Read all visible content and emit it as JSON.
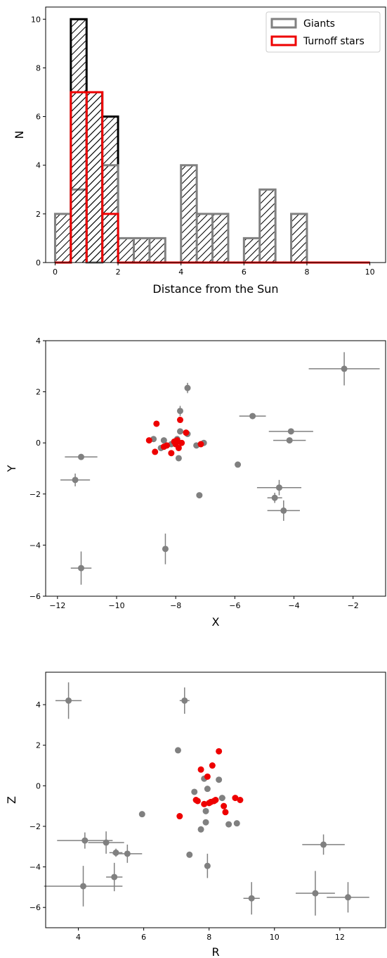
{
  "chart_data": [
    {
      "type": "bar",
      "xlabel": "Distance from the Sun",
      "ylabel": "N",
      "xlim": [
        -0.3,
        10.5
      ],
      "ylim": [
        0,
        10.5
      ],
      "xticks": [
        0,
        2,
        4,
        6,
        8,
        10
      ],
      "yticks": [
        0,
        2,
        4,
        6,
        8,
        10
      ],
      "bin_edges": [
        0,
        0.5,
        1,
        1.5,
        2,
        2.5,
        3,
        3.5,
        4,
        4.5,
        5,
        5.5,
        6,
        6.5,
        7,
        7.5,
        8,
        8.5,
        9,
        9.5,
        10
      ],
      "legend_position": "top-right",
      "series": [
        {
          "name": "",
          "style": "hatched-step-outline",
          "color": "#000000",
          "values": [
            0,
            10,
            7,
            6,
            0,
            0,
            0,
            0,
            0,
            0,
            0,
            0,
            0,
            0,
            0,
            0,
            0,
            0,
            0,
            0
          ]
        },
        {
          "name": "Giants",
          "style": "hatched-step-outline",
          "color": "#808080",
          "values": [
            2,
            3,
            0,
            4,
            1,
            1,
            1,
            0,
            4,
            2,
            2,
            0,
            1,
            3,
            0,
            2,
            0,
            0,
            0,
            0
          ]
        },
        {
          "name": "Turnoff stars",
          "style": "hatched-step-outline",
          "color": "#ee0000",
          "values": [
            0,
            7,
            7,
            2,
            0,
            0,
            0,
            0,
            0,
            0,
            0,
            0,
            0,
            0,
            0,
            0,
            0,
            0,
            0,
            0
          ]
        }
      ],
      "legend": [
        "Giants",
        "Turnoff stars"
      ]
    },
    {
      "type": "scatter",
      "xlabel": "X",
      "ylabel": "Y",
      "xlim": [
        -12.4,
        -0.9
      ],
      "ylim": [
        -6,
        4
      ],
      "xticks": [
        -12,
        -10,
        -8,
        -6,
        -4,
        -2
      ],
      "yticks": [
        -6,
        -4,
        -2,
        0,
        2,
        4
      ],
      "tick_text": {
        "x": [
          "−12",
          "−10",
          "−8",
          "−6",
          "−4",
          "−2"
        ],
        "y": [
          "−6",
          "−4",
          "−2",
          "0",
          "2",
          "4"
        ]
      },
      "series": [
        {
          "name": "",
          "color": "#808080",
          "points": [
            {
              "x": -2.3,
              "y": 2.9,
              "xerr": 1.2,
              "yerr": 0.65
            },
            {
              "x": -7.6,
              "y": 2.15,
              "xerr": 0,
              "yerr": 0.2
            },
            {
              "x": -5.4,
              "y": 1.05,
              "xerr": 0.45,
              "yerr": 0.1
            },
            {
              "x": -4.1,
              "y": 0.45,
              "xerr": 0.75,
              "yerr": 0.05
            },
            {
              "x": -4.15,
              "y": 0.1,
              "xerr": 0.55,
              "yerr": 0.05
            },
            {
              "x": -7.85,
              "y": 1.25,
              "xerr": 0,
              "yerr": 0.2
            },
            {
              "x": -11.2,
              "y": -0.55,
              "xerr": 0.55,
              "yerr": 0.05
            },
            {
              "x": -11.4,
              "y": -1.45,
              "xerr": 0.5,
              "yerr": 0.25
            },
            {
              "x": -5.9,
              "y": -0.85,
              "xerr": 0,
              "yerr": 0
            },
            {
              "x": -7.2,
              "y": -2.05,
              "xerr": 0,
              "yerr": 0.1
            },
            {
              "x": -4.5,
              "y": -1.75,
              "xerr": 0.75,
              "yerr": 0.3
            },
            {
              "x": -4.65,
              "y": -2.15,
              "xerr": 0.25,
              "yerr": 0.2
            },
            {
              "x": -4.35,
              "y": -2.65,
              "xerr": 0.55,
              "yerr": 0.4
            },
            {
              "x": -8.35,
              "y": -4.15,
              "xerr": 0,
              "yerr": 0.6
            },
            {
              "x": -11.2,
              "y": -4.9,
              "xerr": 0.35,
              "yerr": 0.65
            },
            {
              "x": -8.75,
              "y": 0.15,
              "xerr": 0,
              "yerr": 0
            },
            {
              "x": -8.4,
              "y": 0.1,
              "xerr": 0,
              "yerr": 0
            },
            {
              "x": -8.15,
              "y": -0.05,
              "xerr": 0,
              "yerr": 0
            },
            {
              "x": -7.95,
              "y": 0.15,
              "xerr": 0,
              "yerr": 0
            },
            {
              "x": -7.85,
              "y": 0.45,
              "xerr": 0,
              "yerr": 0
            },
            {
              "x": -7.6,
              "y": 0.35,
              "xerr": 0,
              "yerr": 0
            },
            {
              "x": -7.3,
              "y": -0.1,
              "xerr": 0,
              "yerr": 0
            },
            {
              "x": -7.05,
              "y": 0.0,
              "xerr": 0,
              "yerr": 0
            },
            {
              "x": -7.9,
              "y": -0.6,
              "xerr": 0,
              "yerr": 0
            },
            {
              "x": -8.5,
              "y": -0.2,
              "xerr": 0,
              "yerr": 0
            }
          ]
        },
        {
          "name": "",
          "color": "#ee0000",
          "points": [
            {
              "x": -8.9,
              "y": 0.1
            },
            {
              "x": -8.65,
              "y": 0.75
            },
            {
              "x": -8.7,
              "y": -0.35
            },
            {
              "x": -8.4,
              "y": -0.15
            },
            {
              "x": -8.3,
              "y": -0.1
            },
            {
              "x": -8.15,
              "y": -0.4
            },
            {
              "x": -8.05,
              "y": 0.05
            },
            {
              "x": -7.95,
              "y": 0.1
            },
            {
              "x": -7.85,
              "y": 0.9
            },
            {
              "x": -7.8,
              "y": 0.0
            },
            {
              "x": -7.65,
              "y": 0.4
            },
            {
              "x": -7.15,
              "y": -0.05
            },
            {
              "x": -8.0,
              "y": -0.05
            },
            {
              "x": -7.9,
              "y": -0.2
            }
          ]
        }
      ]
    },
    {
      "type": "scatter",
      "xlabel": "R",
      "ylabel": "Z",
      "xlim": [
        3.0,
        13.4
      ],
      "ylim": [
        -7,
        5.6
      ],
      "xticks": [
        4,
        6,
        8,
        10,
        12
      ],
      "yticks": [
        -6,
        -4,
        -2,
        0,
        2,
        4
      ],
      "tick_text": {
        "x": [
          "4",
          "6",
          "8",
          "10",
          "12"
        ],
        "y": [
          "−6",
          "−4",
          "−2",
          "0",
          "2",
          "4"
        ]
      },
      "series": [
        {
          "name": "",
          "color": "#808080",
          "points": [
            {
              "x": 3.7,
              "y": 4.2,
              "xerr": 0.4,
              "yerr": 0.9
            },
            {
              "x": 7.25,
              "y": 4.2,
              "xerr": 0.15,
              "yerr": 0.65
            },
            {
              "x": 7.05,
              "y": 1.75,
              "xerr": 0.05,
              "yerr": 0.05
            },
            {
              "x": 7.85,
              "y": 0.35,
              "xerr": 0,
              "yerr": 0
            },
            {
              "x": 8.3,
              "y": 0.3,
              "xerr": 0,
              "yerr": 0
            },
            {
              "x": 7.55,
              "y": -0.3,
              "xerr": 0,
              "yerr": 0
            },
            {
              "x": 7.95,
              "y": -0.15,
              "xerr": 0,
              "yerr": 0
            },
            {
              "x": 8.4,
              "y": -0.6,
              "xerr": 0.1,
              "yerr": 0
            },
            {
              "x": 7.9,
              "y": -1.25,
              "xerr": 0,
              "yerr": 0
            },
            {
              "x": 7.9,
              "y": -1.8,
              "xerr": 0,
              "yerr": 0
            },
            {
              "x": 8.6,
              "y": -1.9,
              "xerr": 0,
              "yerr": 0
            },
            {
              "x": 8.85,
              "y": -1.85,
              "xerr": 0.05,
              "yerr": 0
            },
            {
              "x": 7.75,
              "y": -2.15,
              "xerr": 0,
              "yerr": 0.15
            },
            {
              "x": 5.95,
              "y": -1.4,
              "xerr": 0,
              "yerr": 0
            },
            {
              "x": 4.2,
              "y": -2.7,
              "xerr": 0.85,
              "yerr": 0.4
            },
            {
              "x": 4.85,
              "y": -2.8,
              "xerr": 0.55,
              "yerr": 0.55
            },
            {
              "x": 5.15,
              "y": -3.3,
              "xerr": 0.2,
              "yerr": 0.2
            },
            {
              "x": 5.5,
              "y": -3.35,
              "xerr": 0.45,
              "yerr": 0.45
            },
            {
              "x": 7.4,
              "y": -3.4,
              "xerr": 0,
              "yerr": 0.15
            },
            {
              "x": 7.95,
              "y": -3.95,
              "xerr": 0,
              "yerr": 0.6
            },
            {
              "x": 5.1,
              "y": -4.5,
              "xerr": 0.25,
              "yerr": 0.7
            },
            {
              "x": 4.15,
              "y": -4.95,
              "xerr": 1.2,
              "yerr": 1.0
            },
            {
              "x": 9.3,
              "y": -5.55,
              "xerr": 0.25,
              "yerr": 0.8
            },
            {
              "x": 11.5,
              "y": -2.9,
              "xerr": 0.65,
              "yerr": 0.5
            },
            {
              "x": 11.25,
              "y": -5.3,
              "xerr": 0.6,
              "yerr": 1.1
            },
            {
              "x": 12.25,
              "y": -5.5,
              "xerr": 0.65,
              "yerr": 0.75
            }
          ]
        },
        {
          "name": "",
          "color": "#ee0000",
          "points": [
            {
              "x": 8.3,
              "y": 1.7
            },
            {
              "x": 8.1,
              "y": 1.0
            },
            {
              "x": 7.75,
              "y": 0.8
            },
            {
              "x": 7.95,
              "y": 0.45
            },
            {
              "x": 7.6,
              "y": -0.7
            },
            {
              "x": 7.65,
              "y": -0.75
            },
            {
              "x": 7.85,
              "y": -0.9
            },
            {
              "x": 8.05,
              "y": -0.8
            },
            {
              "x": 8.2,
              "y": -0.7
            },
            {
              "x": 8.15,
              "y": -0.75
            },
            {
              "x": 8.45,
              "y": -1.0
            },
            {
              "x": 8.5,
              "y": -1.3
            },
            {
              "x": 8.8,
              "y": -0.6
            },
            {
              "x": 8.95,
              "y": -0.7
            },
            {
              "x": 7.1,
              "y": -1.5
            },
            {
              "x": 8.0,
              "y": -0.85
            }
          ]
        }
      ]
    }
  ]
}
